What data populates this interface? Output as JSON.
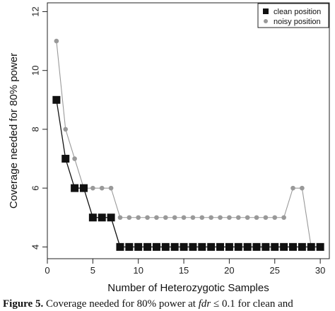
{
  "chart_data": {
    "type": "line",
    "xlabel": "Number of Heterozygotic Samples",
    "ylabel": "Coverage needed for 80% power",
    "xlim": [
      0,
      31
    ],
    "ylim": [
      3.6,
      12.3
    ],
    "xticks": [
      0,
      5,
      10,
      15,
      20,
      25,
      30
    ],
    "yticks": [
      4,
      6,
      8,
      10,
      12
    ],
    "legend_position": "top-right",
    "series": [
      {
        "name": "clean position",
        "marker": "square",
        "color": "#111111",
        "x": [
          1,
          2,
          3,
          4,
          5,
          6,
          7,
          8,
          9,
          10,
          11,
          12,
          13,
          14,
          15,
          16,
          17,
          18,
          19,
          20,
          21,
          22,
          23,
          24,
          25,
          26,
          27,
          28,
          29,
          30
        ],
        "y": [
          9,
          7,
          6,
          6,
          5,
          5,
          5,
          4,
          4,
          4,
          4,
          4,
          4,
          4,
          4,
          4,
          4,
          4,
          4,
          4,
          4,
          4,
          4,
          4,
          4,
          4,
          4,
          4,
          4,
          4
        ]
      },
      {
        "name": "noisy position",
        "marker": "circle",
        "color": "#999999",
        "x": [
          1,
          2,
          3,
          4,
          5,
          6,
          7,
          8,
          9,
          10,
          11,
          12,
          13,
          14,
          15,
          16,
          17,
          18,
          19,
          20,
          21,
          22,
          23,
          24,
          25,
          26,
          27,
          28,
          29,
          30
        ],
        "y": [
          11,
          8,
          7,
          6,
          6,
          6,
          6,
          5,
          5,
          5,
          5,
          5,
          5,
          5,
          5,
          5,
          5,
          5,
          5,
          5,
          5,
          5,
          5,
          5,
          5,
          5,
          6,
          6,
          4,
          4
        ]
      }
    ]
  },
  "caption": {
    "label": "Figure 5.",
    "text_before": " Coverage needed for 80% power at ",
    "fdr": "fdr",
    "text_after": " ≤ 0.1 for clean and"
  }
}
